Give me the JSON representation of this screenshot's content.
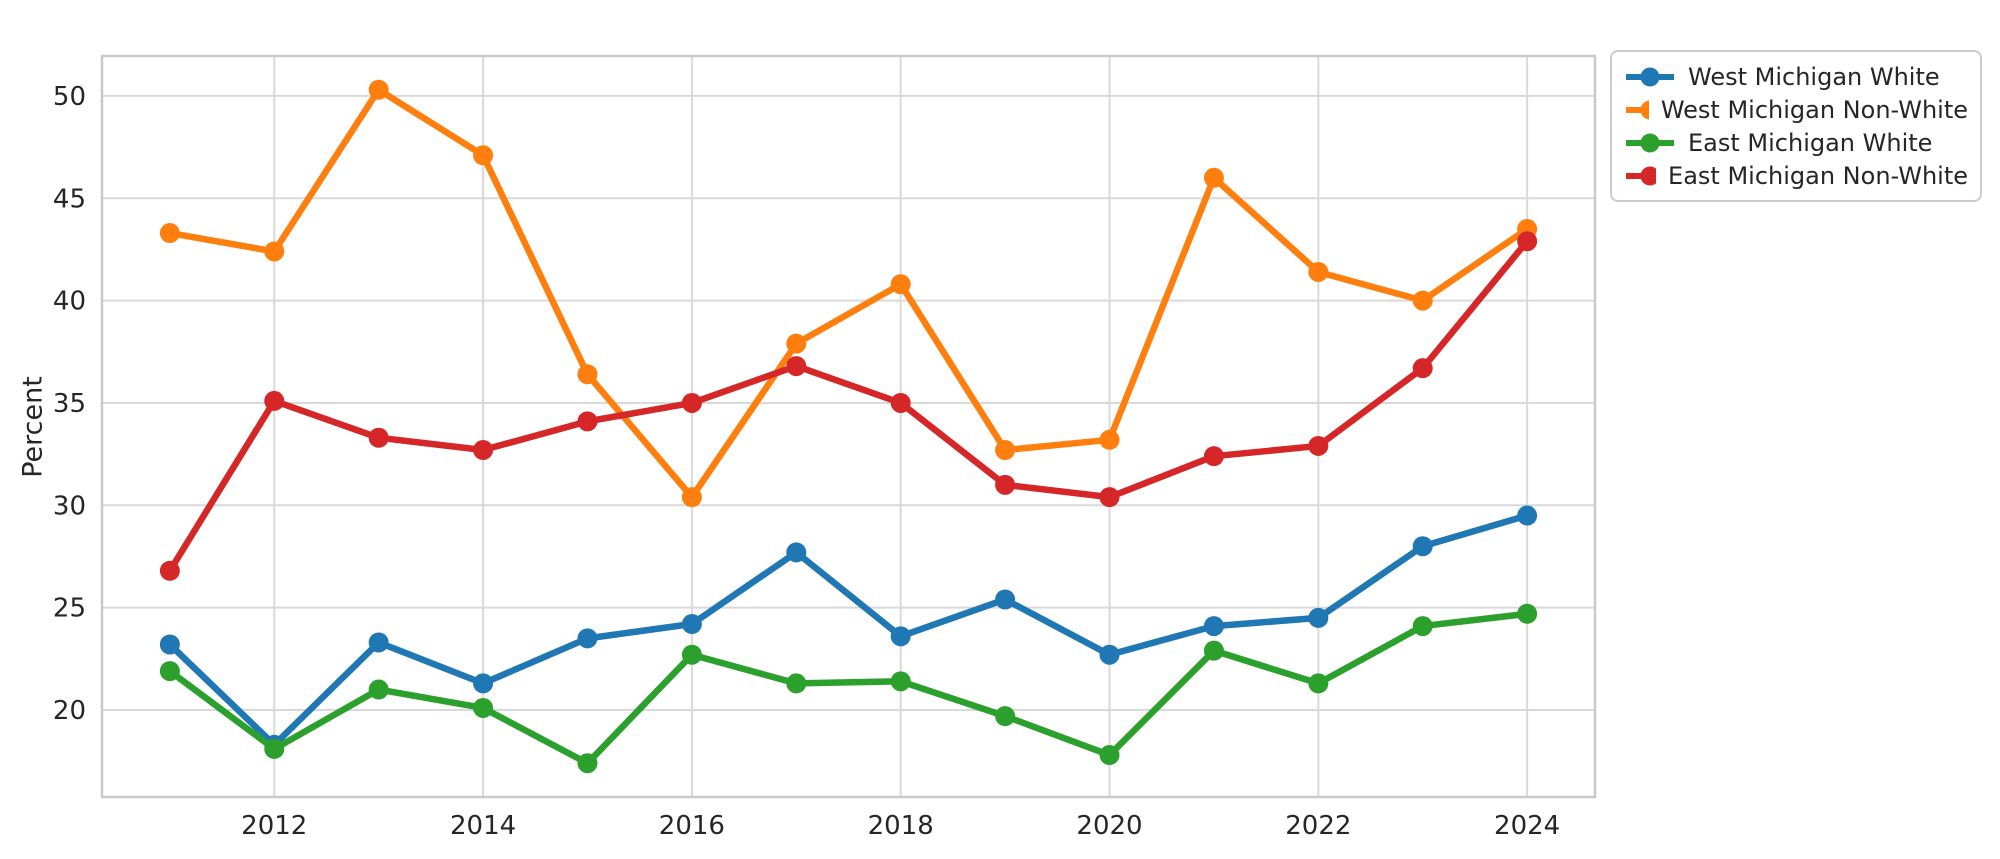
{
  "figure": {
    "background": "#ffffff"
  },
  "chart_data": {
    "type": "line",
    "title": "",
    "xlabel": "",
    "ylabel": "Percent",
    "x": [
      2011,
      2012,
      2013,
      2014,
      2015,
      2016,
      2017,
      2018,
      2019,
      2020,
      2021,
      2022,
      2023,
      2024
    ],
    "series": [
      {
        "name": "West Michigan White",
        "color": "#1f77b4",
        "values": [
          23.2,
          18.3,
          23.3,
          21.3,
          23.5,
          24.2,
          27.7,
          23.6,
          25.4,
          22.7,
          24.1,
          24.5,
          28.0,
          29.5
        ]
      },
      {
        "name": "West Michigan Non-White",
        "color": "#ff7f0e",
        "values": [
          43.3,
          42.4,
          50.3,
          47.1,
          36.4,
          30.4,
          37.9,
          40.8,
          32.7,
          33.2,
          46.0,
          41.4,
          40.0,
          43.5
        ]
      },
      {
        "name": "East Michigan White",
        "color": "#2ca02c",
        "values": [
          21.9,
          18.1,
          21.0,
          20.1,
          17.4,
          22.7,
          21.3,
          21.4,
          19.7,
          17.8,
          22.9,
          21.3,
          24.1,
          24.7
        ]
      },
      {
        "name": "East Michigan Non-White",
        "color": "#d62728",
        "values": [
          26.8,
          35.1,
          33.3,
          32.7,
          34.1,
          35.0,
          36.8,
          35.0,
          31.0,
          30.4,
          32.4,
          32.9,
          36.7,
          42.9
        ]
      }
    ],
    "xticks": [
      2012,
      2014,
      2016,
      2018,
      2020,
      2022,
      2024
    ],
    "yticks": [
      20,
      25,
      30,
      35,
      40,
      45,
      50
    ],
    "xlim": [
      2010.35,
      2024.65
    ],
    "ylim": [
      15.75,
      51.95
    ],
    "grid": true,
    "legend_position": "upper-right-outside",
    "legend_labels": [
      "West Michigan White",
      "West Michigan Non-White",
      "East Michigan White",
      "East Michigan Non-White"
    ],
    "colors": {
      "gridline": "#d9d9d9",
      "plot_border": "#c9c9c9",
      "tick_text": "#262626"
    }
  }
}
